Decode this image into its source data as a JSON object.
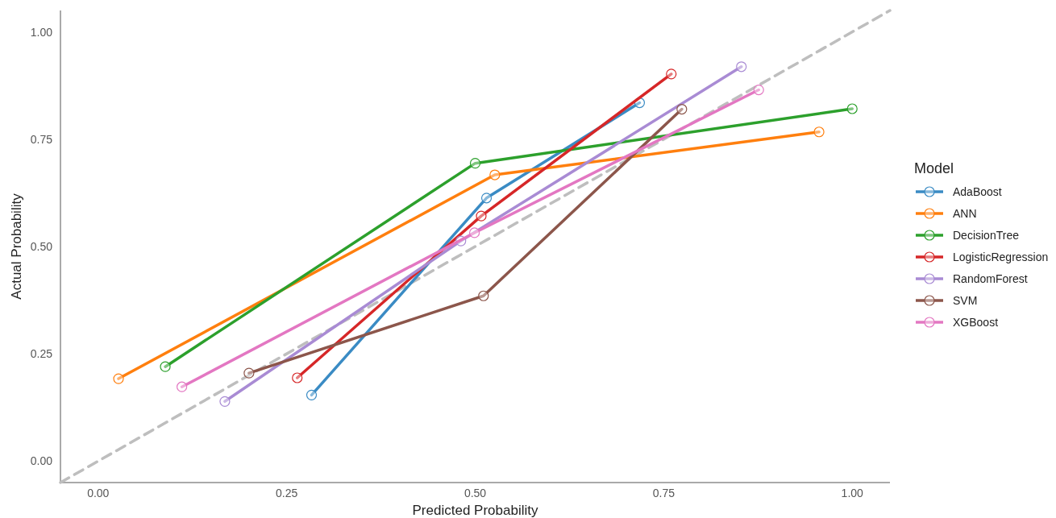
{
  "chart_data": {
    "type": "line",
    "xlabel": "Predicted Probability",
    "ylabel": "Actual Probability",
    "legend_title": "Model",
    "legend": "right",
    "marker": "circle",
    "grid": false,
    "xlim": [
      -0.05,
      1.05
    ],
    "ylim": [
      -0.05,
      1.05
    ],
    "xticks": [
      {
        "value": 0,
        "label": "0.00"
      },
      {
        "value": 0.25,
        "label": "0.25"
      },
      {
        "value": 0.5,
        "label": "0.50"
      },
      {
        "value": 0.75,
        "label": "0.75"
      },
      {
        "value": 1,
        "label": "1.00"
      }
    ],
    "yticks": [
      {
        "value": 0,
        "label": "0.00"
      },
      {
        "value": 0.25,
        "label": "0.25"
      },
      {
        "value": 0.5,
        "label": "0.50"
      },
      {
        "value": 0.75,
        "label": "0.75"
      },
      {
        "value": 1,
        "label": "1.00"
      }
    ],
    "series": [
      {
        "color": "#bebebe",
        "x": [
          -0.05,
          1.05
        ],
        "values": [
          -0.05,
          1.05
        ],
        "line_style": "dashed",
        "marker": "none"
      },
      {
        "name": "AdaBoost",
        "color": "#3a8bc4",
        "x": [
          0.283,
          0.515,
          0.718
        ],
        "values": [
          0.154,
          0.613,
          0.835
        ]
      },
      {
        "name": "ANN",
        "color": "#ff7f0e",
        "x": [
          0.027,
          0.526,
          0.956
        ],
        "values": [
          0.192,
          0.667,
          0.767
        ]
      },
      {
        "name": "DecisionTree",
        "color": "#2ca02c",
        "x": [
          0.089,
          0.5,
          1.0
        ],
        "values": [
          0.22,
          0.694,
          0.821
        ]
      },
      {
        "name": "LogisticRegression",
        "color": "#d62728",
        "x": [
          0.264,
          0.508,
          0.76
        ],
        "values": [
          0.194,
          0.571,
          0.902
        ]
      },
      {
        "name": "RandomForest",
        "color": "#a98bd4",
        "x": [
          0.168,
          0.481,
          0.853
        ],
        "values": [
          0.139,
          0.513,
          0.919
        ]
      },
      {
        "name": "SVM",
        "color": "#8c564b",
        "x": [
          0.2,
          0.511,
          0.774
        ],
        "values": [
          0.205,
          0.385,
          0.82
        ]
      },
      {
        "name": "XGBoost",
        "color": "#e377c2",
        "x": [
          0.111,
          0.499,
          0.876
        ],
        "values": [
          0.173,
          0.532,
          0.865
        ]
      }
    ]
  }
}
